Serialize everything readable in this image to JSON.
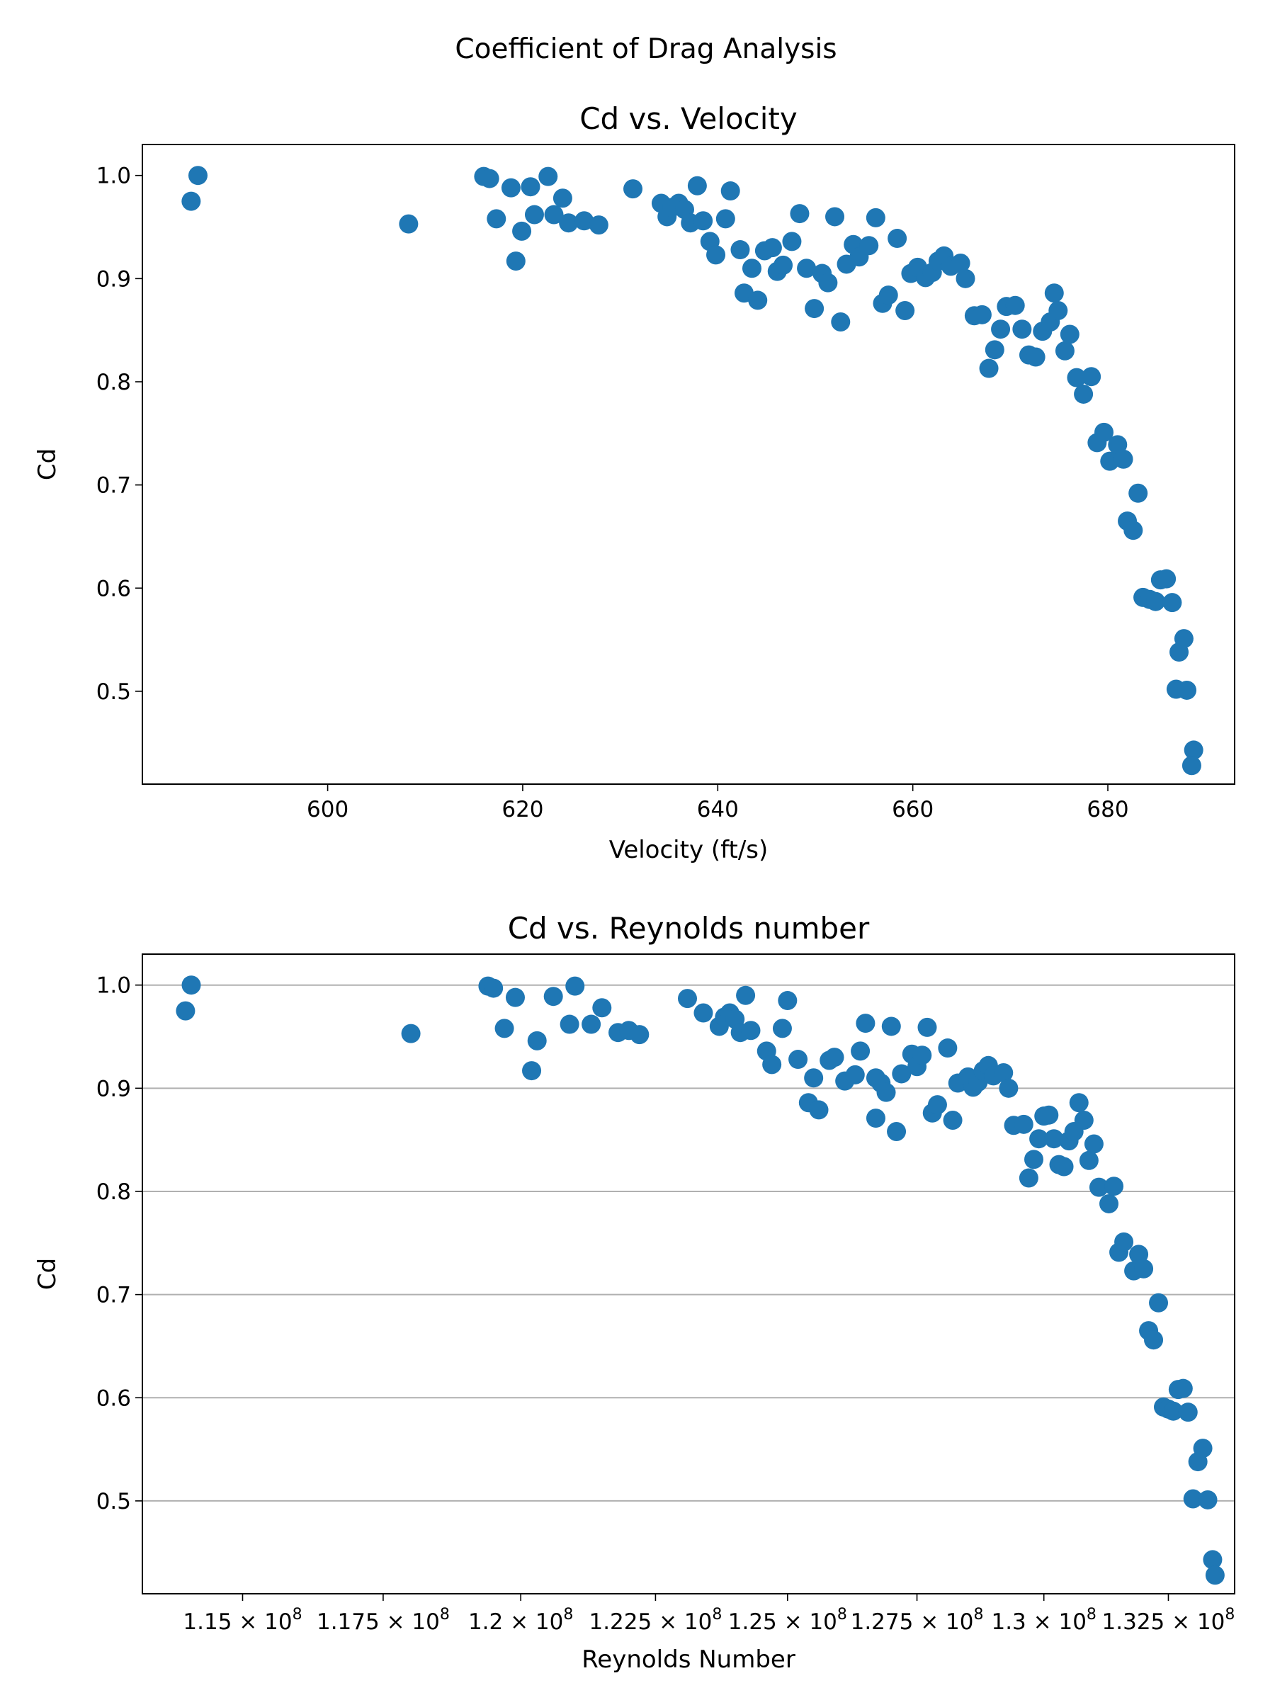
{
  "figure_title": "Coefficient of Drag Analysis",
  "chart_data": [
    {
      "type": "scatter",
      "title": "Cd vs. Velocity",
      "xlabel": "Velocity (ft/s)",
      "ylabel": "Cd",
      "xlim": [
        581,
        693
      ],
      "ylim": [
        0.41,
        1.03
      ],
      "xticks": [
        600,
        620,
        640,
        660,
        680
      ],
      "xtick_labels": [
        "600",
        "620",
        "640",
        "660",
        "680"
      ],
      "yticks": [
        0.5,
        0.6,
        0.7,
        0.8,
        0.9,
        1.0
      ],
      "ytick_labels": [
        "0.5",
        "0.6",
        "0.7",
        "0.8",
        "0.9",
        "1.0"
      ],
      "grid": false,
      "color": "#1f77b4",
      "x": [
        586.0,
        586.7,
        608.3,
        616.0,
        616.6,
        617.3,
        618.8,
        619.3,
        619.9,
        620.8,
        621.2,
        622.6,
        623.2,
        624.1,
        624.7,
        626.3,
        627.8,
        631.3,
        634.2,
        634.8,
        635.3,
        636.0,
        636.6,
        637.2,
        637.9,
        638.5,
        639.2,
        639.8,
        640.8,
        641.3,
        642.3,
        642.7,
        643.5,
        644.1,
        644.8,
        645.6,
        646.1,
        646.7,
        647.6,
        648.4,
        649.1,
        649.9,
        650.7,
        651.3,
        652.0,
        652.6,
        653.2,
        653.9,
        654.5,
        655.5,
        656.2,
        656.9,
        657.5,
        658.4,
        659.2,
        659.8,
        660.5,
        661.3,
        662.0,
        662.6,
        663.2,
        663.9,
        664.9,
        665.4,
        666.3,
        667.1,
        667.8,
        668.4,
        669.0,
        669.6,
        670.5,
        671.2,
        671.9,
        672.6,
        673.3,
        674.1,
        674.5,
        674.9,
        675.6,
        676.1,
        676.8,
        677.5,
        678.3,
        678.9,
        679.6,
        680.2,
        681.0,
        681.6,
        682.0,
        682.6,
        683.1,
        683.6,
        684.3,
        684.9,
        685.4,
        686.0,
        686.6,
        687.0,
        687.3,
        687.8,
        688.1,
        688.8,
        688.6
      ],
      "y": [
        0.975,
        1.0,
        0.953,
        0.999,
        0.997,
        0.958,
        0.988,
        0.917,
        0.946,
        0.989,
        0.962,
        0.999,
        0.962,
        0.978,
        0.954,
        0.956,
        0.952,
        0.987,
        0.973,
        0.96,
        0.969,
        0.973,
        0.967,
        0.954,
        0.99,
        0.956,
        0.936,
        0.923,
        0.958,
        0.985,
        0.928,
        0.886,
        0.91,
        0.879,
        0.927,
        0.93,
        0.907,
        0.913,
        0.936,
        0.963,
        0.91,
        0.871,
        0.905,
        0.896,
        0.96,
        0.858,
        0.914,
        0.933,
        0.921,
        0.932,
        0.959,
        0.876,
        0.884,
        0.939,
        0.869,
        0.905,
        0.911,
        0.901,
        0.906,
        0.917,
        0.922,
        0.912,
        0.915,
        0.9,
        0.864,
        0.865,
        0.813,
        0.831,
        0.851,
        0.873,
        0.874,
        0.851,
        0.826,
        0.824,
        0.849,
        0.858,
        0.886,
        0.869,
        0.83,
        0.846,
        0.804,
        0.788,
        0.805,
        0.741,
        0.751,
        0.723,
        0.739,
        0.725,
        0.665,
        0.656,
        0.692,
        0.591,
        0.589,
        0.587,
        0.608,
        0.609,
        0.586,
        0.502,
        0.538,
        0.551,
        0.501,
        0.443,
        0.428
      ]
    },
    {
      "type": "scatter",
      "title": "Cd vs. Reynolds number",
      "xlabel": "Reynolds Number",
      "ylabel": "Cd",
      "xscale": "log",
      "xlim": [
        113250000,
        133850000
      ],
      "ylim": [
        0.41,
        1.03
      ],
      "xticks": [
        115000000,
        117500000,
        120000000,
        122500000,
        125000000,
        127500000,
        130000000,
        132500000
      ],
      "xtick_labels": [
        {
          "mantissa": "1.15",
          "sep": "×",
          "base": "10",
          "exp": "8"
        },
        {
          "mantissa": "1.175",
          "sep": "×",
          "base": "10",
          "exp": "8"
        },
        {
          "mantissa": "1.2",
          "sep": "×",
          "base": "10",
          "exp": "8"
        },
        {
          "mantissa": "1.225",
          "sep": "×",
          "base": "10",
          "exp": "8"
        },
        {
          "mantissa": "1.25",
          "sep": "×",
          "base": "10",
          "exp": "8"
        },
        {
          "mantissa": "1.275",
          "sep": "×",
          "base": "10",
          "exp": "8"
        },
        {
          "mantissa": "1.3",
          "sep": "×",
          "base": "10",
          "exp": "8"
        },
        {
          "mantissa": "1.325",
          "sep": "×",
          "base": "10",
          "exp": "8"
        }
      ],
      "yticks": [
        0.5,
        0.6,
        0.7,
        0.8,
        0.9,
        1.0
      ],
      "ytick_labels": [
        "0.5",
        "0.6",
        "0.7",
        "0.8",
        "0.9",
        "1.0"
      ],
      "grid": true,
      "grid_axis": "y",
      "color": "#1f77b4",
      "x": [
        114000000,
        114100000,
        118000000,
        119400000,
        119500000,
        119700000,
        119900000,
        120200000,
        120300000,
        120600000,
        120900000,
        121000000,
        121300000,
        121500000,
        121800000,
        122000000,
        122200000,
        123100000,
        123400000,
        123700000,
        123800000,
        123900000,
        124000000,
        124100000,
        124200000,
        124300000,
        124600000,
        124700000,
        124900000,
        125000000,
        125200000,
        125400000,
        125500000,
        125600000,
        125800000,
        125900000,
        126100000,
        126300000,
        126400000,
        126500000,
        126700000,
        126700000,
        126800000,
        126900000,
        127000000,
        127100000,
        127200000,
        127400000,
        127500000,
        127600000,
        127700000,
        127800000,
        127900000,
        128100000,
        128200000,
        128300000,
        128500000,
        128600000,
        128700000,
        128800000,
        128900000,
        129000000,
        129200000,
        129300000,
        129400000,
        129600000,
        129700000,
        129800000,
        129900000,
        130000000,
        130100000,
        130200000,
        130300000,
        130400000,
        130500000,
        130600000,
        130700000,
        130800000,
        130900000,
        131000000,
        131100000,
        131300000,
        131400000,
        131500000,
        131600000,
        131800000,
        131900000,
        132000000,
        132100000,
        132200000,
        132300000,
        132400000,
        132500000,
        132600000,
        132700000,
        132800000,
        132900000,
        133000000,
        133100000,
        133200000,
        133300000,
        133400000,
        133450000
      ],
      "y": [
        0.975,
        1.0,
        0.953,
        0.999,
        0.997,
        0.958,
        0.988,
        0.917,
        0.946,
        0.989,
        0.962,
        0.999,
        0.962,
        0.978,
        0.954,
        0.956,
        0.952,
        0.987,
        0.973,
        0.96,
        0.969,
        0.973,
        0.967,
        0.954,
        0.99,
        0.956,
        0.936,
        0.923,
        0.958,
        0.985,
        0.928,
        0.886,
        0.91,
        0.879,
        0.927,
        0.93,
        0.907,
        0.913,
        0.936,
        0.963,
        0.91,
        0.871,
        0.905,
        0.896,
        0.96,
        0.858,
        0.914,
        0.933,
        0.921,
        0.932,
        0.959,
        0.876,
        0.884,
        0.939,
        0.869,
        0.905,
        0.911,
        0.901,
        0.906,
        0.917,
        0.922,
        0.912,
        0.915,
        0.9,
        0.864,
        0.865,
        0.813,
        0.831,
        0.851,
        0.873,
        0.874,
        0.851,
        0.826,
        0.824,
        0.849,
        0.858,
        0.886,
        0.869,
        0.83,
        0.846,
        0.804,
        0.788,
        0.805,
        0.741,
        0.751,
        0.723,
        0.739,
        0.725,
        0.665,
        0.656,
        0.692,
        0.591,
        0.589,
        0.587,
        0.608,
        0.609,
        0.586,
        0.502,
        0.538,
        0.551,
        0.501,
        0.443,
        0.428
      ]
    }
  ]
}
